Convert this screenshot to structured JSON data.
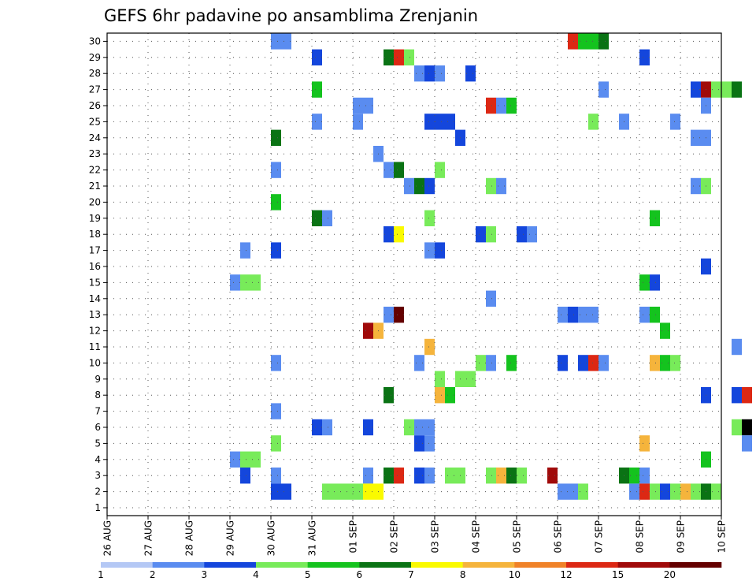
{
  "chart_data": {
    "type": "heatmap",
    "title": "GEFS 6hr padavine po ansamblima Zrenjanin",
    "xlabel": "",
    "ylabel": "",
    "x_tick_labels": [
      "26 AUG",
      "27 AUG",
      "28 AUG",
      "29 AUG",
      "30 AUG",
      "31 AUG",
      "01 SEP",
      "02 SEP",
      "03 SEP",
      "04 SEP",
      "05 SEP",
      "06 SEP",
      "07 SEP",
      "08 SEP",
      "09 SEP",
      "10 SEP"
    ],
    "y_range": [
      1,
      30
    ],
    "y_ticks": [
      1,
      2,
      3,
      4,
      5,
      6,
      7,
      8,
      9,
      10,
      11,
      12,
      13,
      14,
      15,
      16,
      17,
      18,
      19,
      20,
      21,
      22,
      23,
      24,
      25,
      26,
      27,
      28,
      29,
      30
    ],
    "time_step_hours": 6,
    "grid": true,
    "colorbar": {
      "labels": [
        "1",
        "2",
        "3",
        "4",
        "5",
        "6",
        "7",
        "8",
        "10",
        "12",
        "15",
        "20"
      ],
      "colors": [
        "#b4c8f5",
        "#5a8cf0",
        "#1446dc",
        "#78eb5a",
        "#14c31e",
        "#0a7314",
        "#fafa00",
        "#f5b43c",
        "#f08228",
        "#dc2814",
        "#a00a0a",
        "#640000"
      ]
    },
    "cells": [
      [
        30,
        16,
        1
      ],
      [
        30,
        17,
        1
      ],
      [
        30,
        45,
        9
      ],
      [
        30,
        46,
        4
      ],
      [
        30,
        47,
        4
      ],
      [
        30,
        48,
        5
      ],
      [
        30,
        65,
        4
      ],
      [
        30,
        66,
        2
      ],
      [
        30,
        67,
        1
      ],
      [
        29,
        20,
        2
      ],
      [
        29,
        27,
        5
      ],
      [
        29,
        28,
        9
      ],
      [
        29,
        29,
        3
      ],
      [
        29,
        52,
        2
      ],
      [
        28,
        30,
        1
      ],
      [
        28,
        31,
        2
      ],
      [
        28,
        32,
        1
      ],
      [
        28,
        35,
        2
      ],
      [
        27,
        20,
        4
      ],
      [
        27,
        48,
        1
      ],
      [
        27,
        57,
        2
      ],
      [
        27,
        58,
        10
      ],
      [
        27,
        59,
        3
      ],
      [
        27,
        60,
        3
      ],
      [
        27,
        61,
        5
      ],
      [
        26,
        24,
        1
      ],
      [
        26,
        25,
        1
      ],
      [
        26,
        37,
        9
      ],
      [
        26,
        38,
        1
      ],
      [
        26,
        39,
        4
      ],
      [
        26,
        58,
        1
      ],
      [
        25,
        20,
        1
      ],
      [
        25,
        24,
        1
      ],
      [
        25,
        31,
        2
      ],
      [
        25,
        32,
        2
      ],
      [
        25,
        33,
        2
      ],
      [
        25,
        47,
        3
      ],
      [
        25,
        50,
        1
      ],
      [
        25,
        55,
        1
      ],
      [
        24,
        16,
        5
      ],
      [
        24,
        34,
        2
      ],
      [
        24,
        57,
        1
      ],
      [
        24,
        58,
        1
      ],
      [
        23,
        26,
        1
      ],
      [
        22,
        16,
        1
      ],
      [
        22,
        27,
        1
      ],
      [
        22,
        28,
        5
      ],
      [
        22,
        32,
        3
      ],
      [
        21,
        29,
        1
      ],
      [
        21,
        30,
        5
      ],
      [
        21,
        31,
        2
      ],
      [
        21,
        37,
        3
      ],
      [
        21,
        38,
        1
      ],
      [
        21,
        57,
        1
      ],
      [
        21,
        58,
        3
      ],
      [
        20,
        16,
        4
      ],
      [
        19,
        20,
        5
      ],
      [
        19,
        21,
        1
      ],
      [
        19,
        31,
        3
      ],
      [
        19,
        53,
        4
      ],
      [
        18,
        27,
        2
      ],
      [
        18,
        28,
        6
      ],
      [
        18,
        36,
        2
      ],
      [
        18,
        37,
        3
      ],
      [
        18,
        40,
        2
      ],
      [
        18,
        41,
        1
      ],
      [
        17,
        13,
        1
      ],
      [
        17,
        16,
        2
      ],
      [
        17,
        31,
        1
      ],
      [
        17,
        32,
        2
      ],
      [
        16,
        58,
        2
      ],
      [
        15,
        12,
        1
      ],
      [
        15,
        13,
        3
      ],
      [
        15,
        14,
        3
      ],
      [
        15,
        52,
        4
      ],
      [
        15,
        53,
        2
      ],
      [
        14,
        37,
        1
      ],
      [
        13,
        27,
        1
      ],
      [
        13,
        28,
        11
      ],
      [
        13,
        44,
        1
      ],
      [
        13,
        45,
        2
      ],
      [
        13,
        46,
        1
      ],
      [
        13,
        47,
        1
      ],
      [
        13,
        52,
        1
      ],
      [
        13,
        53,
        4
      ],
      [
        12,
        25,
        10
      ],
      [
        12,
        26,
        7
      ],
      [
        12,
        54,
        4
      ],
      [
        11,
        31,
        7
      ],
      [
        11,
        61,
        1
      ],
      [
        10,
        16,
        1
      ],
      [
        10,
        30,
        1
      ],
      [
        10,
        36,
        3
      ],
      [
        10,
        37,
        1
      ],
      [
        10,
        39,
        4
      ],
      [
        10,
        44,
        2
      ],
      [
        10,
        46,
        2
      ],
      [
        10,
        47,
        9
      ],
      [
        10,
        48,
        1
      ],
      [
        10,
        53,
        7
      ],
      [
        10,
        54,
        4
      ],
      [
        10,
        55,
        3
      ],
      [
        9,
        32,
        3
      ],
      [
        9,
        34,
        3
      ],
      [
        9,
        35,
        3
      ],
      [
        8,
        27,
        5
      ],
      [
        8,
        32,
        7
      ],
      [
        8,
        33,
        4
      ],
      [
        8,
        58,
        2
      ],
      [
        8,
        61,
        2
      ],
      [
        8,
        62,
        9
      ],
      [
        7,
        16,
        1
      ],
      [
        6,
        20,
        2
      ],
      [
        6,
        21,
        1
      ],
      [
        6,
        25,
        2
      ],
      [
        6,
        29,
        3
      ],
      [
        6,
        30,
        1
      ],
      [
        6,
        31,
        1
      ],
      [
        6,
        61,
        3
      ],
      [
        6,
        62,
        12
      ],
      [
        5,
        16,
        3
      ],
      [
        5,
        30,
        2
      ],
      [
        5,
        31,
        1
      ],
      [
        5,
        52,
        7
      ],
      [
        5,
        62,
        1
      ],
      [
        4,
        12,
        1
      ],
      [
        4,
        13,
        3
      ],
      [
        4,
        14,
        3
      ],
      [
        4,
        58,
        4
      ],
      [
        3,
        13,
        2
      ],
      [
        3,
        16,
        1
      ],
      [
        3,
        25,
        1
      ],
      [
        3,
        27,
        5
      ],
      [
        3,
        28,
        9
      ],
      [
        3,
        30,
        2
      ],
      [
        3,
        31,
        1
      ],
      [
        3,
        33,
        3
      ],
      [
        3,
        34,
        3
      ],
      [
        3,
        37,
        3
      ],
      [
        3,
        38,
        7
      ],
      [
        3,
        39,
        5
      ],
      [
        3,
        40,
        3
      ],
      [
        3,
        43,
        10
      ],
      [
        3,
        50,
        5
      ],
      [
        3,
        51,
        4
      ],
      [
        3,
        52,
        1
      ],
      [
        2,
        16,
        2
      ],
      [
        2,
        17,
        2
      ],
      [
        2,
        21,
        3
      ],
      [
        2,
        22,
        3
      ],
      [
        2,
        23,
        3
      ],
      [
        2,
        24,
        3
      ],
      [
        2,
        25,
        6
      ],
      [
        2,
        26,
        6
      ],
      [
        2,
        44,
        1
      ],
      [
        2,
        45,
        1
      ],
      [
        2,
        46,
        3
      ],
      [
        2,
        51,
        1
      ],
      [
        2,
        52,
        9
      ],
      [
        2,
        53,
        3
      ],
      [
        2,
        54,
        2
      ],
      [
        2,
        55,
        3
      ],
      [
        2,
        56,
        7
      ],
      [
        2,
        57,
        3
      ],
      [
        2,
        58,
        5
      ],
      [
        2,
        59,
        3
      ]
    ]
  }
}
